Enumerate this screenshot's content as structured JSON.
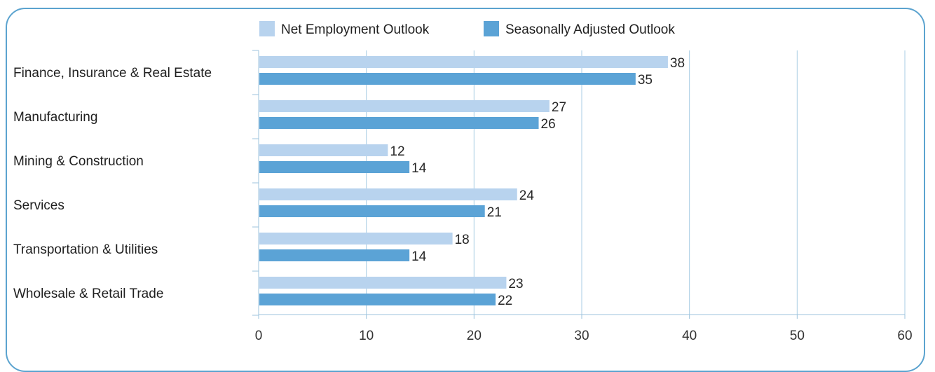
{
  "chart_data": {
    "type": "bar",
    "orientation": "horizontal",
    "categories": [
      "Finance, Insurance & Real Estate",
      "Manufacturing",
      "Mining & Construction",
      "Services",
      "Transportation & Utilities",
      "Wholesale  & Retail Trade"
    ],
    "series": [
      {
        "name": "Net Employment Outlook",
        "color": "#b8d3ee",
        "values": [
          38,
          27,
          12,
          24,
          18,
          23
        ]
      },
      {
        "name": "Seasonally Adjusted Outlook",
        "color": "#5ba3d6",
        "values": [
          35,
          26,
          14,
          21,
          14,
          22
        ]
      }
    ],
    "xlim": [
      0,
      60
    ],
    "xticks": [
      0,
      10,
      20,
      30,
      40,
      50,
      60
    ],
    "grid": true,
    "legend_position": "top"
  }
}
